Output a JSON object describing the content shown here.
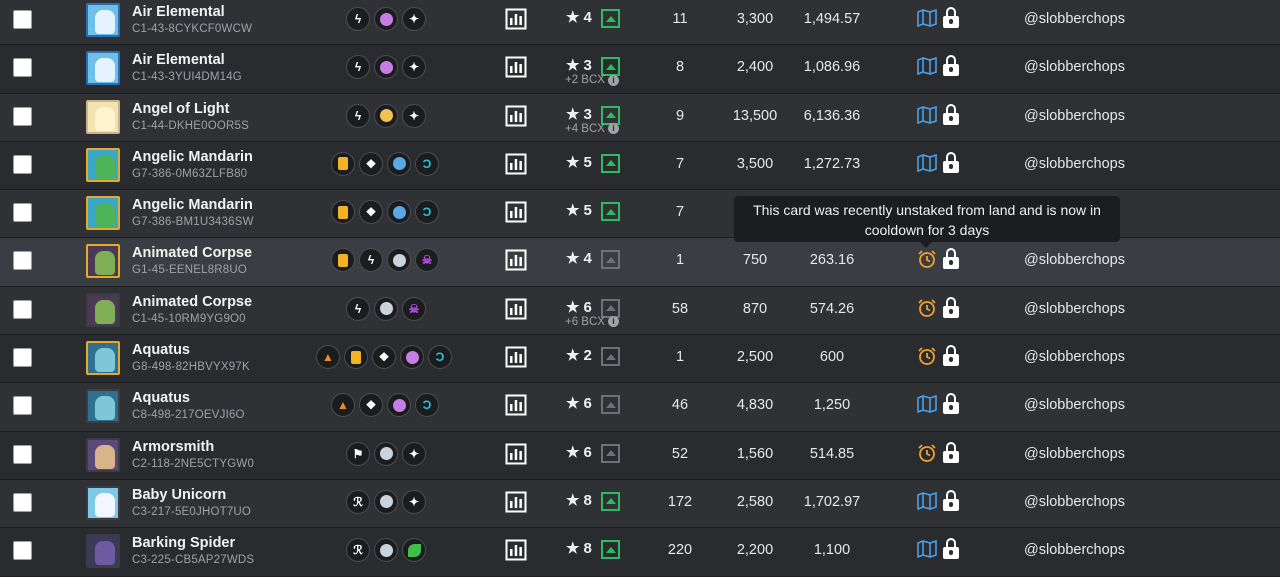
{
  "colors": {
    "upgrade_green": "#2dbb62",
    "upgrade_gray": "#6e7175",
    "map_blue": "#4a9fe8",
    "cooldown_orange": "#f0a030",
    "row_odd": "#2f3134",
    "row_even": "#292b2e"
  },
  "tooltip": {
    "line1": "This card was recently unstaked from land and is now in",
    "line2": "cooldown for 3 days"
  },
  "rows": [
    {
      "name": "Air Elemental",
      "uid": "C1-43-8CYKCF0WCW",
      "level": "4",
      "bcx": "",
      "upgrade": "green",
      "qty": "11",
      "power": "3,300",
      "dec": "1,494.57",
      "status": "map",
      "owner": "@slobberchops",
      "thumb_border": "#2b6fb0",
      "thumb_bg": "#6fc0e8",
      "fig": "#e6f3ff",
      "abilities": [
        {
          "icon": "lightning-icon",
          "c": "#ffffff"
        },
        {
          "icon": "magic-dot-icon",
          "c": "#c77de6"
        },
        {
          "icon": "sparkle-icon",
          "c": "#ffffff"
        }
      ]
    },
    {
      "name": "Air Elemental",
      "uid": "C1-43-3YUI4DM14G",
      "level": "3",
      "bcx": "+2 BCX",
      "upgrade": "green",
      "qty": "8",
      "power": "2,400",
      "dec": "1,086.96",
      "status": "map",
      "owner": "@slobberchops",
      "thumb_border": "#2b6fb0",
      "thumb_bg": "#6fc0e8",
      "fig": "#e6f3ff",
      "abilities": [
        {
          "icon": "lightning-icon",
          "c": "#ffffff"
        },
        {
          "icon": "magic-dot-icon",
          "c": "#c77de6"
        },
        {
          "icon": "sparkle-icon",
          "c": "#ffffff"
        }
      ]
    },
    {
      "name": "Angel of Light",
      "uid": "C1-44-DKHE0OOR5S",
      "level": "3",
      "bcx": "+4 BCX",
      "upgrade": "green",
      "qty": "9",
      "power": "13,500",
      "dec": "6,136.36",
      "status": "map",
      "owner": "@slobberchops",
      "thumb_border": "#c9b48a",
      "thumb_bg": "#f3e3b0",
      "fig": "#fff4d0",
      "abilities": [
        {
          "icon": "lightning-icon",
          "c": "#ffffff"
        },
        {
          "icon": "gold-dot-icon",
          "c": "#f2c14e"
        },
        {
          "icon": "sparkle-icon",
          "c": "#ffffff"
        }
      ]
    },
    {
      "name": "Angelic Mandarin",
      "uid": "G7-386-0M63ZLFB80",
      "level": "5",
      "bcx": "",
      "upgrade": "green",
      "qty": "7",
      "power": "3,500",
      "dec": "1,272.73",
      "status": "map",
      "owner": "@slobberchops",
      "thumb_border": "#e7a92c",
      "thumb_bg": "#3aa7c7",
      "fig": "#4fb35a",
      "abilities": [
        {
          "icon": "card-icon",
          "c": "#f2b225"
        },
        {
          "icon": "diamond-icon",
          "c": "#ffffff"
        },
        {
          "icon": "water-dot-icon",
          "c": "#5aa8e6"
        },
        {
          "icon": "wave-icon",
          "c": "#25c6d6"
        }
      ]
    },
    {
      "name": "Angelic Mandarin",
      "uid": "G7-386-BM1U3436SW",
      "level": "5",
      "bcx": "",
      "upgrade": "green",
      "qty": "7",
      "power": "",
      "dec": "",
      "status": "map",
      "owner": "",
      "thumb_border": "#e7a92c",
      "thumb_bg": "#3aa7c7",
      "fig": "#4fb35a",
      "abilities": [
        {
          "icon": "card-icon",
          "c": "#f2b225"
        },
        {
          "icon": "diamond-icon",
          "c": "#ffffff"
        },
        {
          "icon": "water-dot-icon",
          "c": "#5aa8e6"
        },
        {
          "icon": "wave-icon",
          "c": "#25c6d6"
        }
      ]
    },
    {
      "name": "Animated Corpse",
      "uid": "G1-45-EENEL8R8UO",
      "level": "4",
      "bcx": "",
      "upgrade": "gray",
      "qty": "1",
      "power": "750",
      "dec": "263.16",
      "status": "clock",
      "owner": "@slobberchops",
      "thumb_border": "#e7a92c",
      "thumb_bg": "#4a3a55",
      "fig": "#7fae57",
      "abilities": [
        {
          "icon": "card-icon",
          "c": "#f2b225"
        },
        {
          "icon": "lightning-icon",
          "c": "#ffffff"
        },
        {
          "icon": "neutral-dot-icon",
          "c": "#c9d3dc"
        },
        {
          "icon": "skull-icon",
          "c": "#b44be0"
        }
      ]
    },
    {
      "name": "Animated Corpse",
      "uid": "C1-45-10RM9YG9O0",
      "level": "6",
      "bcx": "+6 BCX",
      "upgrade": "gray",
      "qty": "58",
      "power": "870",
      "dec": "574.26",
      "status": "clock",
      "owner": "@slobberchops",
      "thumb_border": "#3a3d41",
      "thumb_bg": "#4a3a55",
      "fig": "#7fae57",
      "abilities": [
        {
          "icon": "lightning-icon",
          "c": "#ffffff"
        },
        {
          "icon": "neutral-dot-icon",
          "c": "#c9d3dc"
        },
        {
          "icon": "skull-icon",
          "c": "#b44be0"
        }
      ]
    },
    {
      "name": "Aquatus",
      "uid": "G8-498-82HBVYX97K",
      "level": "2",
      "bcx": "",
      "upgrade": "gray",
      "qty": "1",
      "power": "2,500",
      "dec": "600",
      "status": "clock",
      "owner": "@slobberchops",
      "thumb_border": "#e7a92c",
      "thumb_bg": "#2f6f8f",
      "fig": "#7fc6d8",
      "abilities": [
        {
          "icon": "land-icon",
          "c": "#f08a24"
        },
        {
          "icon": "card-icon",
          "c": "#f2b225"
        },
        {
          "icon": "diamond-icon",
          "c": "#ffffff"
        },
        {
          "icon": "magic-dot-icon",
          "c": "#c77de6"
        },
        {
          "icon": "wave-icon",
          "c": "#25c6d6"
        }
      ]
    },
    {
      "name": "Aquatus",
      "uid": "C8-498-217OEVJI6O",
      "level": "6",
      "bcx": "",
      "upgrade": "gray",
      "qty": "46",
      "power": "4,830",
      "dec": "1,250",
      "status": "map",
      "owner": "@slobberchops",
      "thumb_border": "#3a3d41",
      "thumb_bg": "#2f6f8f",
      "fig": "#7fc6d8",
      "abilities": [
        {
          "icon": "land-icon",
          "c": "#f08a24"
        },
        {
          "icon": "diamond-icon",
          "c": "#ffffff"
        },
        {
          "icon": "magic-dot-icon",
          "c": "#c77de6"
        },
        {
          "icon": "wave-icon",
          "c": "#25c6d6"
        }
      ]
    },
    {
      "name": "Armorsmith",
      "uid": "C2-118-2NE5CTYGW0",
      "level": "6",
      "bcx": "",
      "upgrade": "gray",
      "qty": "52",
      "power": "1,560",
      "dec": "514.85",
      "status": "clock",
      "owner": "@slobberchops",
      "thumb_border": "#3a3d41",
      "thumb_bg": "#5a4a7a",
      "fig": "#d9b38c",
      "abilities": [
        {
          "icon": "flag-icon",
          "c": "#ffffff"
        },
        {
          "icon": "neutral-dot-icon",
          "c": "#c9d3dc"
        },
        {
          "icon": "sparkle-icon",
          "c": "#ffffff"
        }
      ]
    },
    {
      "name": "Baby Unicorn",
      "uid": "C3-217-5E0JHOT7UO",
      "level": "8",
      "bcx": "",
      "upgrade": "green",
      "qty": "172",
      "power": "2,580",
      "dec": "1,702.97",
      "status": "map",
      "owner": "@slobberchops",
      "thumb_border": "#3a3d41",
      "thumb_bg": "#7ec8e8",
      "fig": "#f2f7ff",
      "abilities": [
        {
          "icon": "rune-icon",
          "c": "#ffffff"
        },
        {
          "icon": "neutral-dot-icon",
          "c": "#c9d3dc"
        },
        {
          "icon": "sparkle-icon",
          "c": "#ffffff"
        }
      ]
    },
    {
      "name": "Barking Spider",
      "uid": "C3-225-CB5AP27WDS",
      "level": "8",
      "bcx": "",
      "upgrade": "green",
      "qty": "220",
      "power": "2,200",
      "dec": "1,100",
      "status": "map",
      "owner": "@slobberchops",
      "thumb_border": "#3a3d41",
      "thumb_bg": "#3c3a5a",
      "fig": "#6d5aa3",
      "abilities": [
        {
          "icon": "rune-icon",
          "c": "#ffffff"
        },
        {
          "icon": "neutral-dot-icon",
          "c": "#c9d3dc"
        },
        {
          "icon": "leaf-icon",
          "c": "#3fbf4a"
        }
      ]
    }
  ]
}
